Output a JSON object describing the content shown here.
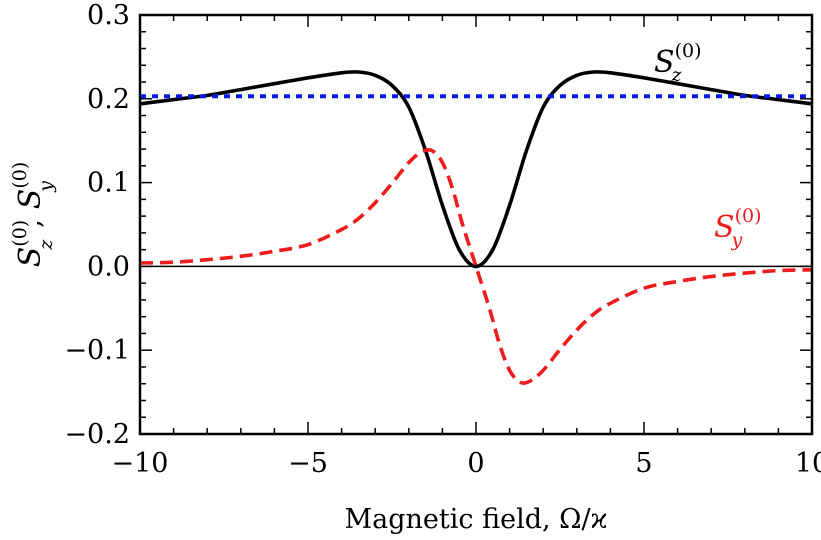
{
  "chart_data": {
    "type": "line",
    "xlabel": "Magnetic field, Ω/ϰ",
    "ylabel": {
      "s1_base": "S",
      "s1_sub": "z",
      "s1_sup": "(0)",
      "sep": ",",
      "s2_base": "S",
      "s2_sub": "y",
      "s2_sup": "(0)"
    },
    "xlim": [
      -10,
      10
    ],
    "ylim": [
      -0.2,
      0.3
    ],
    "x_ticks": [
      -10,
      -5,
      0,
      5,
      10
    ],
    "x_tick_labels": [
      "−10",
      "−5",
      "0",
      "5",
      "10"
    ],
    "y_ticks": [
      -0.2,
      -0.1,
      0.0,
      0.1,
      0.2,
      0.3
    ],
    "y_tick_labels": [
      "−0.2",
      "−0.1",
      "0.0",
      "0.1",
      "0.2",
      "0.3"
    ],
    "grid": false,
    "legend": "inline labels",
    "zero_line": true,
    "series": [
      {
        "label": {
          "base": "S",
          "sub": "z",
          "sup": "(0)"
        },
        "color": "#000000",
        "style": "solid",
        "x": [
          -10,
          -9,
          -8,
          -7,
          -6,
          -5,
          -4,
          -3.5,
          -3,
          -2.5,
          -2,
          -1.5,
          -1,
          -0.5,
          0,
          0.5,
          1,
          1.5,
          2,
          2.5,
          3,
          3.5,
          4,
          5,
          6,
          7,
          8,
          9,
          10
        ],
        "y": [
          0.194,
          0.199,
          0.204,
          0.211,
          0.218,
          0.225,
          0.231,
          0.232,
          0.228,
          0.216,
          0.19,
          0.138,
          0.073,
          0.02,
          0.0,
          0.02,
          0.073,
          0.138,
          0.19,
          0.216,
          0.228,
          0.232,
          0.231,
          0.225,
          0.218,
          0.211,
          0.204,
          0.199,
          0.194
        ]
      },
      {
        "label": {
          "base": "S",
          "sub": "y",
          "sup": "(0)"
        },
        "color": "#ee1c1c",
        "style": "dashed",
        "x": [
          -10,
          -9,
          -8,
          -7,
          -6,
          -5,
          -4,
          -3.5,
          -3,
          -2.5,
          -2,
          -1.6,
          -1.3,
          -1,
          -0.7,
          -0.4,
          0,
          0.4,
          0.7,
          1,
          1.3,
          1.6,
          2,
          2.5,
          3,
          3.5,
          4,
          5,
          6,
          7,
          8,
          9,
          10
        ],
        "y": [
          0.004,
          0.005,
          0.008,
          0.012,
          0.018,
          0.026,
          0.044,
          0.057,
          0.076,
          0.099,
          0.124,
          0.137,
          0.138,
          0.124,
          0.093,
          0.05,
          0.0,
          -0.05,
          -0.093,
          -0.124,
          -0.138,
          -0.137,
          -0.124,
          -0.099,
          -0.076,
          -0.057,
          -0.044,
          -0.026,
          -0.018,
          -0.012,
          -0.008,
          -0.005,
          -0.004
        ]
      },
      {
        "label": null,
        "color": "#0a1ae6",
        "style": "dotted",
        "x": [
          -10,
          10
        ],
        "y": [
          0.203,
          0.203
        ]
      }
    ]
  }
}
